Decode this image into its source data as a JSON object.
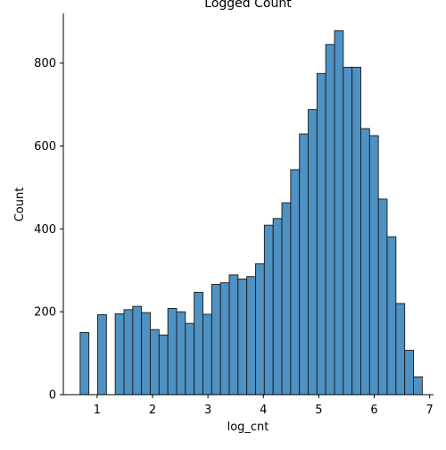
{
  "chart_data": {
    "type": "bar",
    "title": "Logged Count",
    "xlabel": "log_cnt",
    "ylabel": "Count",
    "xlim": [
      0.39,
      7.07
    ],
    "ylim": [
      0,
      920
    ],
    "xticks": [
      1,
      2,
      3,
      4,
      5,
      6,
      7
    ],
    "yticks": [
      0,
      200,
      400,
      600,
      800
    ],
    "bin_start": 0.693,
    "bin_width": 0.1583,
    "values": [
      150,
      0,
      193,
      0,
      195,
      205,
      213,
      198,
      157,
      144,
      208,
      200,
      172,
      247,
      194,
      266,
      270,
      289,
      279,
      285,
      316,
      409,
      425,
      463,
      543,
      629,
      688,
      775,
      845,
      878,
      790,
      790,
      642,
      625,
      472,
      381,
      220,
      107,
      43
    ],
    "bar_color": "#4e91c3",
    "edge_color": "#1a1a1a",
    "grid": false,
    "legend": false
  }
}
